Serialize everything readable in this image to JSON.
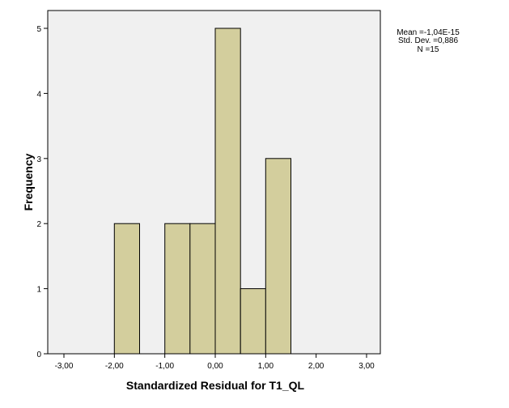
{
  "chart_data": {
    "type": "bar",
    "subtype": "histogram",
    "bin_width": 0.5,
    "bins": [
      {
        "start": -2.0,
        "end": -1.5,
        "count": 2
      },
      {
        "start": -1.0,
        "end": -0.5,
        "count": 2
      },
      {
        "start": -0.5,
        "end": 0.0,
        "count": 2
      },
      {
        "start": 0.0,
        "end": 0.5,
        "count": 5
      },
      {
        "start": 0.5,
        "end": 1.0,
        "count": 1
      },
      {
        "start": 1.0,
        "end": 1.5,
        "count": 3
      }
    ],
    "title": "",
    "xlabel": "Standardized Residual for T1_QL",
    "ylabel": "Frequency",
    "xlim": [
      -3.3,
      3.3
    ],
    "ylim": [
      0,
      5.5
    ],
    "x_ticks": [
      -3,
      -2,
      -1,
      0,
      1,
      2,
      3
    ],
    "x_tick_labels": [
      "-3,00",
      "-2,00",
      "-1,00",
      "0,00",
      "1,00",
      "2,00",
      "3,00"
    ],
    "y_ticks": [
      0,
      1,
      2,
      3,
      4,
      5
    ],
    "y_tick_labels": [
      "0",
      "1",
      "2",
      "3",
      "4",
      "5"
    ],
    "grid": false,
    "legend": "none",
    "stats": {
      "mean": "Mean =-1,04E-15",
      "std_dev": "Std. Dev. =0,886",
      "n": "N =15"
    },
    "colors": {
      "bar_fill": "#d3ce9d",
      "bar_stroke": "#000000",
      "plot_background": "#f0f0f0",
      "frame": "#000000"
    }
  }
}
